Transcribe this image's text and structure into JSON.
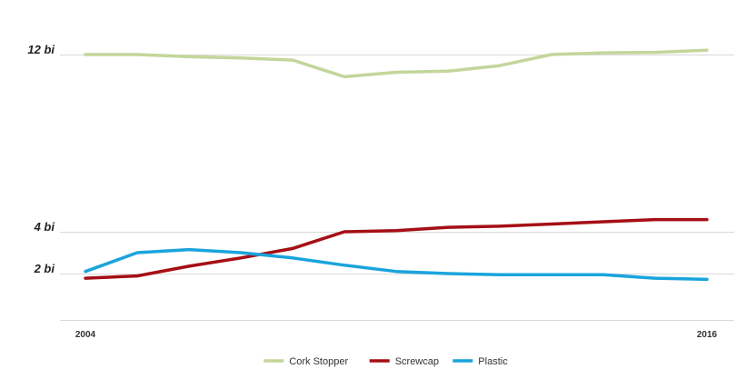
{
  "chart_data": {
    "type": "line",
    "title": "",
    "xlabel": "",
    "ylabel": "",
    "x": [
      2004,
      2005,
      2006,
      2007,
      2008,
      2009,
      2010,
      2011,
      2012,
      2013,
      2014,
      2015,
      2016
    ],
    "x_tick_labels": [
      {
        "x": 2004,
        "label": "2004"
      },
      {
        "x": 2016,
        "label": "2016"
      }
    ],
    "y_ticks": [
      {
        "value": 2,
        "label": "2 bi"
      },
      {
        "value": 4,
        "label": "4 bi"
      },
      {
        "value": 12,
        "label": "12 bi"
      }
    ],
    "series": [
      {
        "name": "Cork Stopper",
        "color": "#c3d69b",
        "values": [
          12.0,
          12.0,
          11.9,
          11.85,
          11.75,
          11.0,
          11.2,
          11.25,
          11.5,
          12.0,
          12.08,
          12.1,
          12.2
        ]
      },
      {
        "name": "Screwcap",
        "color": "#a50f15",
        "values": [
          1.8,
          1.9,
          2.35,
          2.75,
          3.2,
          4.0,
          4.05,
          4.2,
          4.25,
          4.35,
          4.45,
          4.55,
          4.55
        ]
      },
      {
        "name": "Plastic",
        "color": "#1aa4dc",
        "values": [
          2.1,
          3.0,
          3.15,
          3.0,
          2.75,
          2.4,
          2.1,
          2.0,
          1.95,
          1.95,
          1.95,
          1.8,
          1.75
        ]
      }
    ],
    "legend_position": "bottom-center",
    "grid": "horizontal"
  }
}
